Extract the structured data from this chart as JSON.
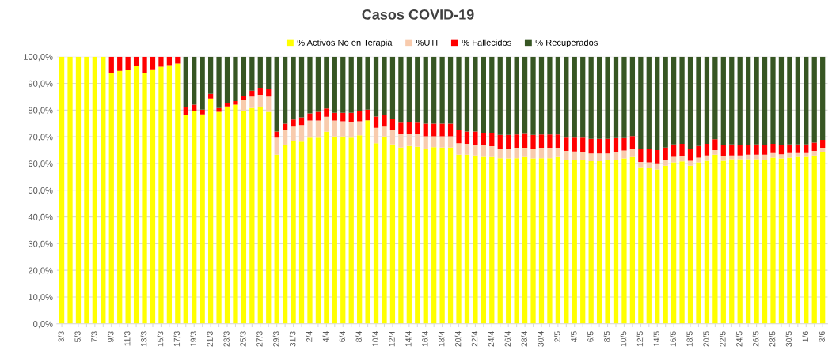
{
  "chart_data": {
    "type": "bar",
    "title": "Casos COVID-19",
    "stacked": true,
    "legend": "top",
    "grid": "y",
    "categories": [
      "3/3",
      null,
      "5/3",
      null,
      "7/3",
      null,
      "9/3",
      null,
      "11/3",
      null,
      "13/3",
      null,
      "15/3",
      null,
      "17/3",
      null,
      "19/3",
      null,
      "21/3",
      null,
      "23/3",
      null,
      "25/3",
      null,
      "27/3",
      null,
      "29/3",
      null,
      "31/3",
      null,
      "2/4",
      null,
      "4/4",
      null,
      "6/4",
      null,
      "8/4",
      null,
      "10/4",
      null,
      "12/4",
      null,
      "14/4",
      null,
      "16/4",
      null,
      "18/4",
      null,
      "20/4",
      null,
      "22/4",
      null,
      "24/4",
      null,
      "26/4",
      null,
      "28/4",
      null,
      "30/4",
      null,
      "2/5",
      null,
      "4/5",
      null,
      "6/5",
      null,
      "8/5",
      null,
      "10/5",
      null,
      "12/5",
      null,
      "14/5",
      null,
      "16/5",
      null,
      "18/5",
      null,
      "20/5",
      null,
      "22/5",
      null,
      "24/5",
      null,
      "26/5",
      null,
      "28/5",
      null,
      "30/5",
      null,
      "1/6",
      null,
      "3/6"
    ],
    "ylim": [
      0,
      100
    ],
    "yticks": [
      {
        "value": 0,
        "label": "0,0%"
      },
      {
        "value": 10,
        "label": "10,0%"
      },
      {
        "value": 20,
        "label": "20,0%"
      },
      {
        "value": 30,
        "label": "30,0%"
      },
      {
        "value": 40,
        "label": "40,0%"
      },
      {
        "value": 50,
        "label": "50,0%"
      },
      {
        "value": 60,
        "label": "60,0%"
      },
      {
        "value": 70,
        "label": "70,0%"
      },
      {
        "value": 80,
        "label": "80,0%"
      },
      {
        "value": 90,
        "label": "90,0%"
      },
      {
        "value": 100,
        "label": "100,0%"
      }
    ],
    "series": [
      {
        "name": "% Activos No en Terapia",
        "color": "#ffff00",
        "values": [
          100,
          100,
          100,
          100,
          100,
          100,
          93.9,
          94.7,
          95.0,
          96.5,
          93.9,
          95.3,
          96.2,
          96.8,
          97.4,
          78.2,
          79.6,
          78.4,
          84.3,
          79.4,
          81.4,
          82.0,
          79.7,
          80.8,
          81.2,
          79.4,
          63.3,
          66.8,
          68.5,
          68.2,
          69.7,
          69.7,
          71.9,
          70.1,
          70.1,
          69.7,
          70.6,
          76.2,
          67.6,
          70.1,
          67.2,
          66.0,
          66.6,
          66.3,
          65.6,
          66.1,
          66.0,
          66.0,
          63.3,
          63.3,
          63.0,
          62.5,
          62.4,
          62.0,
          61.9,
          62.0,
          62.4,
          61.9,
          62.0,
          62.0,
          62.4,
          61.5,
          61.5,
          61.5,
          60.9,
          60.9,
          61.2,
          61.5,
          61.9,
          62.4,
          58.4,
          58.2,
          57.8,
          59.2,
          60.4,
          60.8,
          59.2,
          60.4,
          61.0,
          63.3,
          61.0,
          61.6,
          61.6,
          61.6,
          61.6,
          61.3,
          62.2,
          61.9,
          62.2,
          62.5,
          62.5,
          63.0,
          64.1
        ]
      },
      {
        "name": "%UTI",
        "color": "#f8cbad",
        "values": [
          0,
          0,
          0,
          0,
          0,
          0,
          0,
          0,
          0,
          0,
          0,
          0,
          0,
          0,
          0,
          0,
          0,
          0,
          0,
          0,
          0,
          0,
          4.2,
          4.3,
          4.5,
          5.7,
          6.4,
          5.8,
          5.3,
          6.2,
          6.4,
          6.4,
          5.6,
          6.0,
          5.7,
          5.7,
          5.2,
          0,
          5.8,
          3.7,
          5.2,
          5.2,
          4.6,
          4.9,
          4.6,
          4.1,
          4.2,
          4.2,
          4.3,
          4.1,
          4.1,
          4.3,
          4.1,
          3.6,
          3.7,
          3.9,
          3.5,
          3.7,
          3.9,
          3.9,
          3.5,
          3.2,
          3.0,
          2.6,
          2.9,
          2.9,
          2.6,
          2.6,
          3.0,
          2.9,
          2.2,
          2.2,
          2.3,
          2.0,
          2.1,
          1.9,
          1.8,
          1.8,
          2.0,
          1.7,
          1.7,
          1.4,
          1.4,
          1.7,
          1.7,
          2.0,
          1.7,
          1.6,
          1.7,
          1.4,
          1.4,
          1.7,
          1.8
        ]
      },
      {
        "name": "% Fallecidos",
        "color": "#ff0000",
        "values": [
          0,
          0,
          0,
          0,
          0,
          0,
          6.1,
          5.3,
          5.0,
          3.5,
          6.1,
          4.7,
          3.8,
          3.2,
          2.6,
          3.0,
          2.4,
          1.8,
          1.8,
          1.4,
          1.2,
          1.4,
          1.5,
          2.2,
          2.6,
          2.7,
          2.3,
          2.3,
          2.7,
          2.9,
          2.7,
          3.3,
          3.1,
          2.9,
          3.2,
          3.6,
          3.9,
          4.0,
          4.2,
          4.4,
          4.4,
          4.1,
          4.4,
          4.1,
          4.7,
          4.7,
          4.7,
          4.7,
          4.8,
          4.6,
          4.9,
          4.7,
          5.0,
          5.1,
          5.1,
          5.0,
          5.5,
          5.1,
          5.0,
          5.0,
          5.0,
          5.0,
          5.2,
          5.6,
          5.4,
          5.4,
          5.4,
          5.4,
          4.6,
          5.0,
          4.8,
          5.0,
          4.9,
          4.8,
          4.7,
          4.7,
          4.6,
          4.4,
          4.4,
          4.1,
          4.1,
          4.2,
          3.8,
          3.5,
          3.9,
          3.5,
          3.5,
          3.3,
          3.3,
          3.3,
          3.3,
          3.1,
          3.0
        ]
      },
      {
        "name": "% Recuperados",
        "color": "#375623",
        "values": [
          0,
          0,
          0,
          0,
          0,
          0,
          0,
          0,
          0,
          0,
          0,
          0,
          0,
          0,
          0,
          18.8,
          18.0,
          19.8,
          13.9,
          19.2,
          17.4,
          16.6,
          14.6,
          12.7,
          11.7,
          12.2,
          28.0,
          25.1,
          23.5,
          22.7,
          21.2,
          20.6,
          19.4,
          21.0,
          21.0,
          21.0,
          20.3,
          19.8,
          22.4,
          21.8,
          23.2,
          24.7,
          24.4,
          24.7,
          25.1,
          25.1,
          25.1,
          25.1,
          27.6,
          28.0,
          28.0,
          28.5,
          28.5,
          29.3,
          29.3,
          29.1,
          28.6,
          29.3,
          29.1,
          29.1,
          29.1,
          30.3,
          30.3,
          30.3,
          30.8,
          30.8,
          30.8,
          30.5,
          30.5,
          29.7,
          34.6,
          34.6,
          35.0,
          34.0,
          32.8,
          32.6,
          34.4,
          33.4,
          32.6,
          30.9,
          33.2,
          32.8,
          33.2,
          33.2,
          32.8,
          33.2,
          32.6,
          33.2,
          32.8,
          32.8,
          32.8,
          32.2,
          31.1
        ]
      }
    ]
  }
}
